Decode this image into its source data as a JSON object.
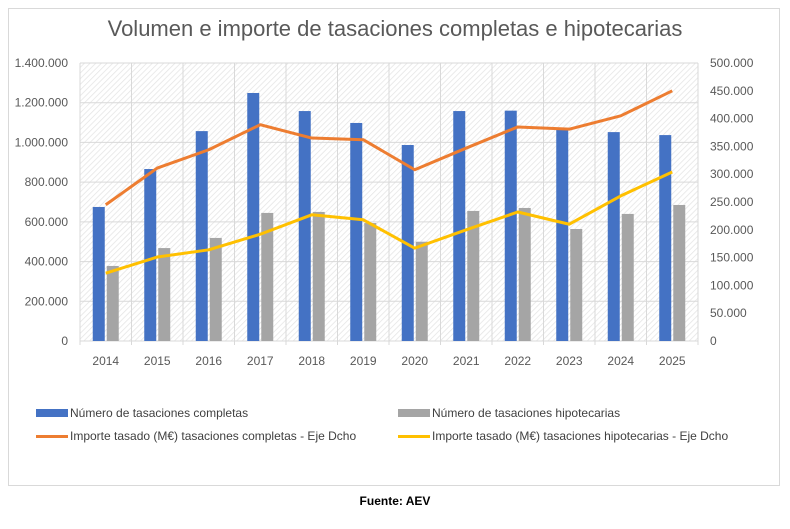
{
  "chart_data": {
    "type": "bar+line",
    "title": "Volumen e importe de tasaciones completas e hipotecarias",
    "categories": [
      "2014",
      "2015",
      "2016",
      "2017",
      "2018",
      "2019",
      "2020",
      "2021",
      "2022",
      "2023",
      "2024",
      "2025"
    ],
    "y_left": {
      "ylim": [
        0,
        1400000
      ],
      "ticks": [
        "0",
        "200.000",
        "400.000",
        "600.000",
        "800.000",
        "1.000.000",
        "1.200.000",
        "1.400.000"
      ]
    },
    "y_right": {
      "ylim": [
        0,
        500000
      ],
      "ticks": [
        "0",
        "50.000",
        "100.000",
        "150.000",
        "200.000",
        "250.000",
        "300.000",
        "350.000",
        "400.000",
        "450.000",
        "500.000"
      ]
    },
    "grid": true,
    "legend_position": "bottom",
    "series": [
      {
        "name": "Número de tasaciones completas",
        "kind": "bar",
        "axis": "left",
        "color": "#4472c4",
        "values": [
          675000,
          866000,
          1057000,
          1249000,
          1158000,
          1098000,
          987000,
          1158000,
          1160000,
          1073000,
          1052000,
          1037000
        ]
      },
      {
        "name": "Número de tasaciones hipotecarias",
        "kind": "bar",
        "axis": "left",
        "color": "#a5a5a5",
        "values": [
          378000,
          468000,
          519000,
          645000,
          650000,
          594000,
          500000,
          655000,
          670000,
          564000,
          640000,
          685000
        ]
      },
      {
        "name": "Importe tasado (M€) tasaciones completas - Eje Dcho",
        "kind": "line",
        "axis": "right",
        "color": "#ed7d31",
        "values": [
          245000,
          311000,
          344000,
          389000,
          365000,
          362000,
          308000,
          347000,
          385000,
          381000,
          405000,
          450000
        ]
      },
      {
        "name": "Importe tasado (M€) tasaciones hipotecarias - Eje Dcho",
        "kind": "line",
        "axis": "right",
        "color": "#ffc000",
        "values": [
          122000,
          151000,
          164000,
          192000,
          227000,
          218000,
          167000,
          200000,
          232000,
          210000,
          261000,
          304000
        ]
      }
    ]
  },
  "source": "Fuente: AEV"
}
